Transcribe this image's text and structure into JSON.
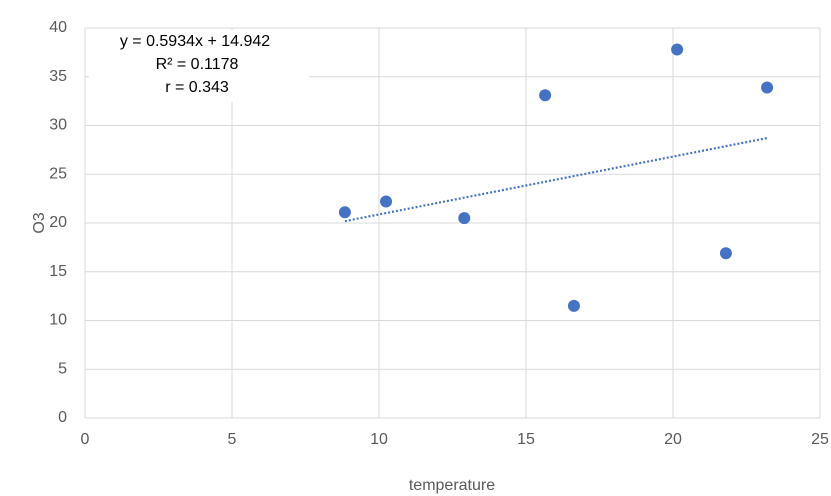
{
  "chart_data": {
    "type": "scatter",
    "x_label": "temperature",
    "y_label": "O3",
    "series": [
      {
        "color": "#4472c4",
        "x": [
          8.84,
          10.24,
          12.9,
          15.65,
          16.63,
          20.14,
          21.8,
          23.2
        ],
        "values": [
          21.1,
          22.2,
          20.5,
          33.1,
          11.5,
          37.8,
          16.9,
          33.9
        ]
      }
    ],
    "trendline": {
      "x": [
        8.84,
        23.2
      ],
      "y": [
        20.19,
        28.71
      ],
      "color": "#4472c4"
    },
    "annotations": [
      "y = 0.5934x + 14.942",
      "R² = 0.1178",
      "r = 0.343"
    ],
    "xlim": [
      0,
      25
    ],
    "xticks": [
      0,
      5,
      10,
      15,
      20,
      25
    ],
    "ylim": [
      0,
      40
    ],
    "yticks": [
      0,
      5,
      10,
      15,
      20,
      25,
      30,
      35,
      40
    ],
    "grid": true
  }
}
